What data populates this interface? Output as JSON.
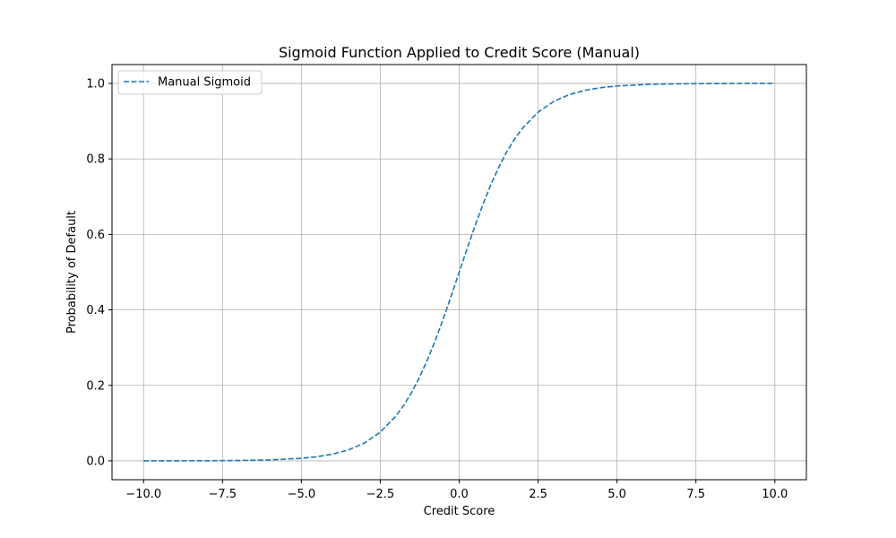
{
  "chart_data": {
    "type": "line",
    "title": "Sigmoid Function Applied to Credit Score (Manual)",
    "xlabel": "Credit Score",
    "ylabel": "Probability of Default",
    "xlim": [
      -11,
      11
    ],
    "ylim": [
      -0.05,
      1.05
    ],
    "x_ticks": [
      -10,
      -7.5,
      -5,
      -2.5,
      0,
      2.5,
      5,
      7.5,
      10
    ],
    "x_tick_labels": [
      "−10.0",
      "−7.5",
      "−5.0",
      "−2.5",
      "0.0",
      "2.5",
      "5.0",
      "7.5",
      "10.0"
    ],
    "y_ticks": [
      0,
      0.2,
      0.4,
      0.6,
      0.8,
      1.0
    ],
    "y_tick_labels": [
      "0.0",
      "0.2",
      "0.4",
      "0.6",
      "0.8",
      "1.0"
    ],
    "grid": true,
    "legend": {
      "location": "upper-left",
      "entries": [
        "Manual Sigmoid"
      ]
    },
    "series": [
      {
        "name": "Manual Sigmoid",
        "color": "#1f77b4",
        "linestyle": "dashed",
        "x": [
          -10,
          -9,
          -8,
          -7,
          -6,
          -5,
          -4.5,
          -4,
          -3.5,
          -3,
          -2.5,
          -2,
          -1.75,
          -1.5,
          -1.25,
          -1,
          -0.75,
          -0.5,
          -0.25,
          0,
          0.25,
          0.5,
          0.75,
          1,
          1.25,
          1.5,
          1.75,
          2,
          2.5,
          3,
          3.5,
          4,
          4.5,
          5,
          6,
          7,
          8,
          9,
          10
        ],
        "y": [
          4.54e-05,
          0.000123,
          0.000335,
          0.000911,
          0.00247,
          0.00669,
          0.011,
          0.018,
          0.0293,
          0.0474,
          0.0759,
          0.1192,
          0.148,
          0.1824,
          0.2227,
          0.2689,
          0.3208,
          0.3775,
          0.4378,
          0.5,
          0.5622,
          0.6225,
          0.6792,
          0.7311,
          0.7773,
          0.8176,
          0.852,
          0.8808,
          0.9241,
          0.9526,
          0.9707,
          0.982,
          0.989,
          0.9933,
          0.99753,
          0.99909,
          0.99966,
          0.99988,
          0.99995
        ]
      }
    ]
  }
}
